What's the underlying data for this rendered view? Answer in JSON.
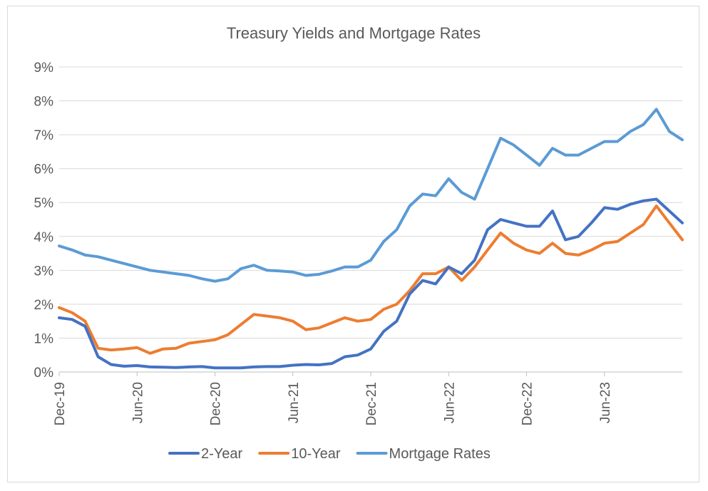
{
  "chart_data": {
    "type": "line",
    "title": "Treasury Yields and Mortgage Rates",
    "xlabel": "",
    "ylabel": "",
    "x_tick_labels": [
      "Dec-19",
      "Jun-20",
      "Dec-20",
      "Jun-21",
      "Dec-21",
      "Jun-22",
      "Dec-22",
      "Jun-23"
    ],
    "y_tick_labels": [
      "0%",
      "1%",
      "2%",
      "3%",
      "4%",
      "5%",
      "6%",
      "7%",
      "8%",
      "9%"
    ],
    "ylim": [
      0,
      9
    ],
    "x_range": [
      "2019-12",
      "2023-12"
    ],
    "grid": "horizontal",
    "legend_position": "bottom",
    "x": [
      "2019-12",
      "2020-01",
      "2020-02",
      "2020-03",
      "2020-04",
      "2020-05",
      "2020-06",
      "2020-07",
      "2020-08",
      "2020-09",
      "2020-10",
      "2020-11",
      "2020-12",
      "2021-01",
      "2021-02",
      "2021-03",
      "2021-04",
      "2021-05",
      "2021-06",
      "2021-07",
      "2021-08",
      "2021-09",
      "2021-10",
      "2021-11",
      "2021-12",
      "2022-01",
      "2022-02",
      "2022-03",
      "2022-04",
      "2022-05",
      "2022-06",
      "2022-07",
      "2022-08",
      "2022-09",
      "2022-10",
      "2022-11",
      "2022-12",
      "2023-01",
      "2023-02",
      "2023-03",
      "2023-04",
      "2023-05",
      "2023-06",
      "2023-07",
      "2023-08",
      "2023-09",
      "2023-10",
      "2023-11",
      "2023-12"
    ],
    "series": [
      {
        "name": "2-Year",
        "color": "#4472c4",
        "values": [
          1.6,
          1.55,
          1.35,
          0.45,
          0.22,
          0.17,
          0.19,
          0.15,
          0.14,
          0.13,
          0.15,
          0.16,
          0.12,
          0.12,
          0.12,
          0.15,
          0.16,
          0.16,
          0.2,
          0.22,
          0.21,
          0.25,
          0.45,
          0.5,
          0.68,
          1.2,
          1.5,
          2.3,
          2.7,
          2.6,
          3.1,
          2.9,
          3.3,
          4.2,
          4.5,
          4.4,
          4.3,
          4.3,
          4.75,
          3.9,
          4.0,
          4.4,
          4.85,
          4.8,
          4.95,
          5.05,
          5.1,
          4.75,
          4.4
        ]
      },
      {
        "name": "10-Year",
        "color": "#ed7d31",
        "values": [
          1.9,
          1.75,
          1.5,
          0.7,
          0.65,
          0.68,
          0.72,
          0.55,
          0.68,
          0.7,
          0.85,
          0.9,
          0.95,
          1.1,
          1.4,
          1.7,
          1.65,
          1.6,
          1.5,
          1.25,
          1.3,
          1.45,
          1.6,
          1.5,
          1.55,
          1.85,
          2.0,
          2.4,
          2.9,
          2.9,
          3.1,
          2.7,
          3.1,
          3.6,
          4.1,
          3.8,
          3.6,
          3.5,
          3.8,
          3.5,
          3.45,
          3.6,
          3.8,
          3.85,
          4.1,
          4.35,
          4.9,
          4.4,
          3.9
        ]
      },
      {
        "name": "Mortgage Rates",
        "color": "#5b9bd5",
        "values": [
          3.72,
          3.6,
          3.45,
          3.4,
          3.3,
          3.2,
          3.1,
          3.0,
          2.95,
          2.9,
          2.85,
          2.75,
          2.68,
          2.75,
          3.05,
          3.15,
          3.0,
          2.98,
          2.95,
          2.85,
          2.88,
          2.98,
          3.1,
          3.1,
          3.3,
          3.85,
          4.2,
          4.9,
          5.25,
          5.2,
          5.7,
          5.3,
          5.1,
          6.0,
          6.9,
          6.7,
          6.4,
          6.1,
          6.6,
          6.4,
          6.4,
          6.6,
          6.8,
          6.8,
          7.1,
          7.3,
          7.75,
          7.1,
          6.85
        ]
      }
    ]
  }
}
